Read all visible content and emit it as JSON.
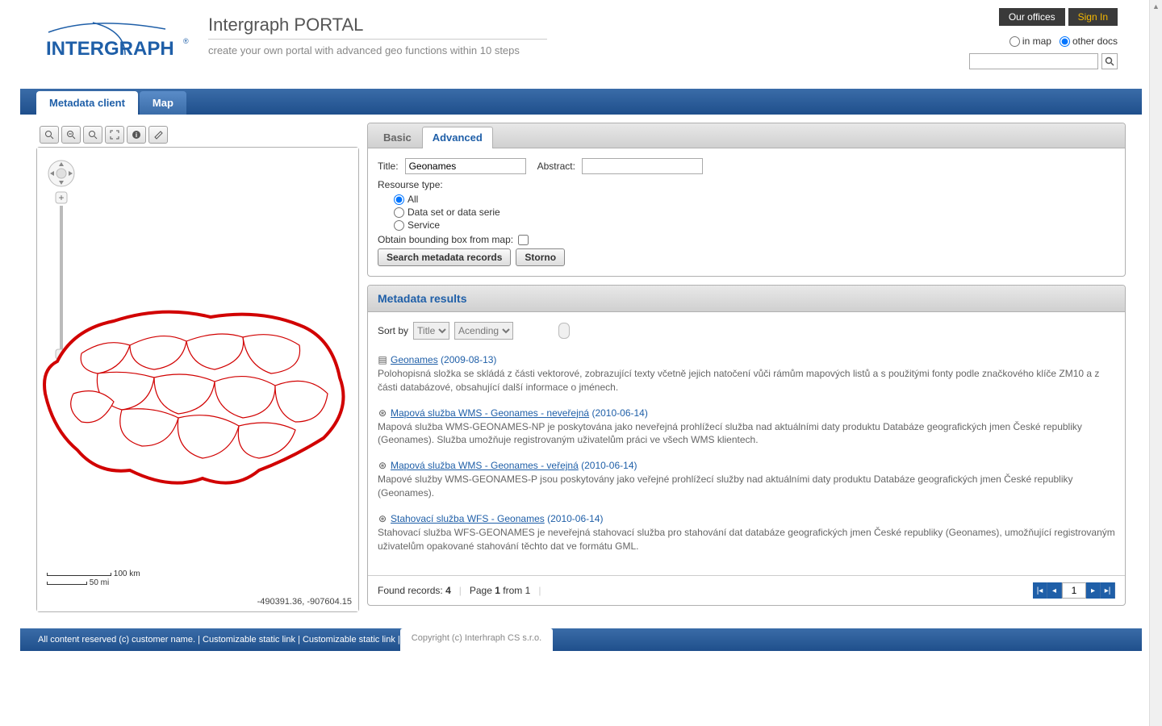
{
  "header": {
    "portal_title": "Intergraph PORTAL",
    "portal_subtitle": "create your own portal with advanced geo functions within 10 steps",
    "offices_btn": "Our offices",
    "signin_btn": "Sign In",
    "radio_inmap": "in map",
    "radio_otherdocs": "other docs",
    "radio_selected": "other docs"
  },
  "nav": {
    "tab1": "Metadata client",
    "tab2": "Map",
    "active": "Metadata client"
  },
  "map": {
    "scale_km": "100 km",
    "scale_mi": "50 mi",
    "coords": "-490391.36, -907604.15"
  },
  "search": {
    "tab_basic": "Basic",
    "tab_advanced": "Advanced",
    "active_tab": "Advanced",
    "title_label": "Title:",
    "title_value": "Geonames",
    "abstract_label": "Abstract:",
    "abstract_value": "",
    "resource_label": "Resourse type:",
    "opt_all": "All",
    "opt_dataset": "Data set or data serie",
    "opt_service": "Service",
    "resource_selected": "All",
    "bbox_label": "Obtain bounding box from map:",
    "bbox_checked": false,
    "btn_search": "Search metadata records",
    "btn_cancel": "Storno"
  },
  "results": {
    "header": "Metadata results",
    "sort_label": "Sort by",
    "sort_field": "Title",
    "sort_order": "Acending",
    "items": [
      {
        "icon": "document",
        "title": "Geonames",
        "date": "(2009-08-13)",
        "desc": "Polohopisná složka se skládá z části vektorové, zobrazující texty včetně jejich natočení vůči rámům mapových listů a s použitými fonty podle značkového klíče ZM10 a z části databázové, obsahující další informace o jménech."
      },
      {
        "icon": "service",
        "title": "Mapová služba WMS - Geonames - neveřejná",
        "date": "(2010-06-14)",
        "desc": "Mapová služba WMS-GEONAMES-NP je poskytována jako neveřejná prohlížecí služba nad aktuálními daty produktu Databáze geografických jmen České republiky (Geonames). Služba umožňuje registrovaným uživatelům práci ve všech WMS klientech."
      },
      {
        "icon": "service",
        "title": "Mapová služba WMS - Geonames - veřejná",
        "date": "(2010-06-14)",
        "desc": "Mapové služby WMS-GEONAMES-P jsou poskytovány jako veřejné prohlížecí služby nad aktuálními daty produktu Databáze geografických jmen České republiky (Geonames)."
      },
      {
        "icon": "service",
        "title": "Stahovací služba WFS - Geonames",
        "date": "(2010-06-14)",
        "desc": "Stahovací služba WFS-GEONAMES je neveřejná stahovací služba pro stahování dat databáze geografických jmen České republiky (Geonames), umožňující registrovaným uživatelům opakované stahování těchto dat ve formátu GML."
      }
    ],
    "found_label": "Found records:",
    "found_count": "4",
    "page_label": "Page",
    "page_num": "1",
    "page_from": "from",
    "page_total": "1",
    "current_page": "1"
  },
  "footer": {
    "left": "All content reserved (c) customer name.",
    "link1": "Customizable static link",
    "link2": "Customizable static link",
    "right": "Copyright (c) Interhraph CS s.r.o."
  },
  "colors": {
    "brand_blue": "#1f5fa8",
    "nav_grad_top": "#3a6ca8",
    "nav_grad_bottom": "#1f4f8c",
    "signin_yellow": "#f5b800",
    "map_red": "#d10000"
  }
}
